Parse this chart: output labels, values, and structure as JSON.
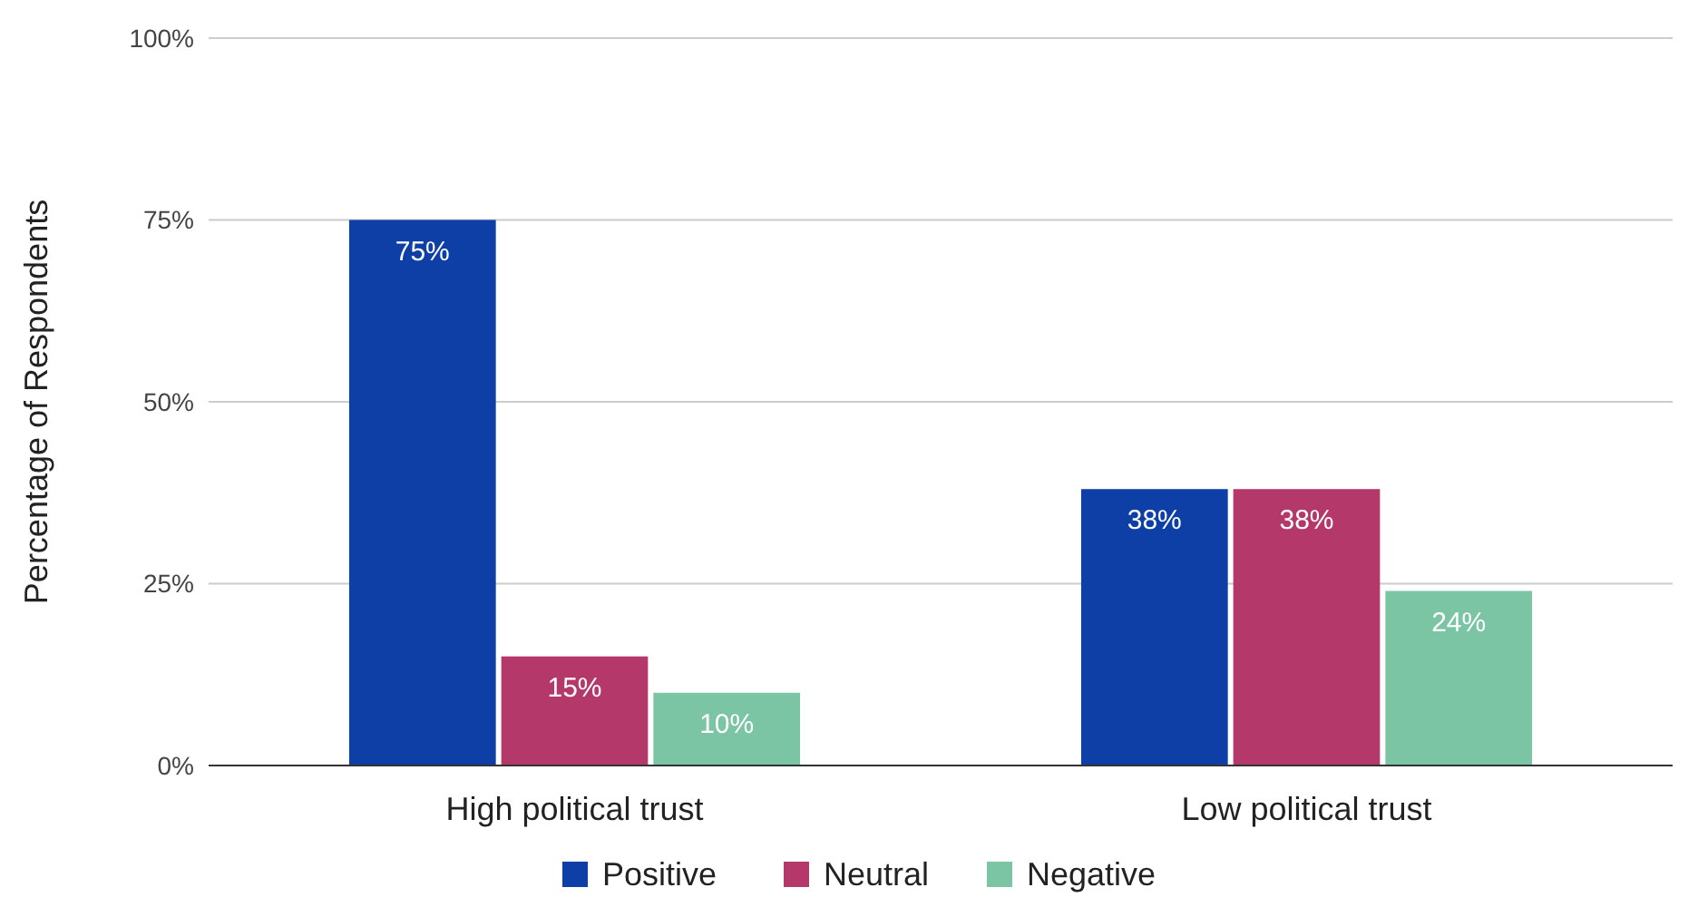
{
  "chart_data": {
    "type": "bar",
    "ylabel": "Percentage of Respondents",
    "categories": [
      "High political trust",
      "Low political trust"
    ],
    "series": [
      {
        "name": "Positive",
        "color": "#0d3fa6",
        "values": [
          75,
          38
        ],
        "value_labels": [
          "75%",
          "38%"
        ]
      },
      {
        "name": "Neutral",
        "color": "#b5386a",
        "values": [
          15,
          38
        ],
        "value_labels": [
          "15%",
          "38%"
        ]
      },
      {
        "name": "Negative",
        "color": "#7bc4a4",
        "values": [
          10,
          24
        ],
        "value_labels": [
          "10%",
          "24%"
        ]
      }
    ],
    "ylim": [
      0,
      100
    ],
    "yticks": [
      {
        "value": 0,
        "label": "0%"
      },
      {
        "value": 25,
        "label": "25%"
      },
      {
        "value": 50,
        "label": "50%"
      },
      {
        "value": 75,
        "label": "75%"
      },
      {
        "value": 100,
        "label": "100%"
      }
    ],
    "grid": "y",
    "legend": "bottom"
  }
}
